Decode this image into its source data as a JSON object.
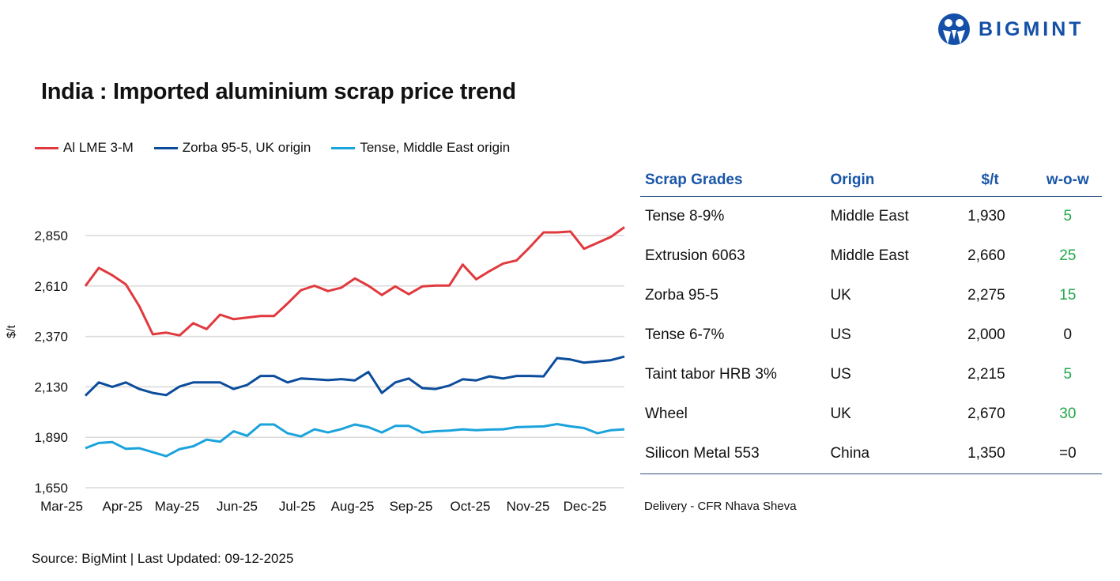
{
  "title": "India : Imported aluminium scrap price trend",
  "logo": {
    "text": "BIGMINT",
    "color": "#1450a8"
  },
  "source": "Source: BigMint | Last Updated: 09-12-2025",
  "chart_data": {
    "type": "line",
    "title": "India : Imported aluminium scrap price trend",
    "ylabel": "$/t",
    "xlabel": "",
    "ylim": [
      1650,
      2850
    ],
    "yticks": [
      "1,650",
      "1,890",
      "2,130",
      "2,370",
      "2,610",
      "2,850"
    ],
    "ytick_values": [
      1650,
      1890,
      2130,
      2370,
      2610,
      2850
    ],
    "xtick_labels": [
      "Mar-25",
      "Apr-25",
      "May-25",
      "Jun-25",
      "Jul-25",
      "Aug-25",
      "Sep-25",
      "Oct-25",
      "Nov-25",
      "Dec-25"
    ],
    "grid": true,
    "legend_position": "top-left",
    "series": [
      {
        "name": "Al LME 3-M",
        "color": "#e0393e",
        "values": [
          2610,
          2696,
          2661,
          2618,
          2514,
          2380,
          2388,
          2375,
          2433,
          2405,
          2474,
          2452,
          2460,
          2467,
          2467,
          2527,
          2590,
          2611,
          2586,
          2602,
          2646,
          2611,
          2567,
          2608,
          2571,
          2608,
          2612,
          2612,
          2712,
          2642,
          2681,
          2717,
          2732,
          2796,
          2865,
          2865,
          2869,
          2787,
          2815,
          2844,
          2890
        ]
      },
      {
        "name": "Zorba 95-5, UK origin",
        "color": "#0b4d9c",
        "values": [
          2088,
          2151,
          2130,
          2151,
          2120,
          2101,
          2091,
          2132,
          2151,
          2151,
          2151,
          2120,
          2139,
          2182,
          2182,
          2151,
          2170,
          2166,
          2162,
          2167,
          2161,
          2201,
          2101,
          2151,
          2170,
          2124,
          2120,
          2136,
          2166,
          2161,
          2180,
          2170,
          2182,
          2182,
          2180,
          2267,
          2260,
          2245,
          2251,
          2257,
          2274
        ]
      },
      {
        "name": "Tense, Middle East origin",
        "color": "#1aa3dc",
        "values": [
          1838,
          1863,
          1867,
          1835,
          1838,
          1819,
          1800,
          1834,
          1847,
          1879,
          1869,
          1919,
          1897,
          1951,
          1951,
          1909,
          1894,
          1928,
          1913,
          1929,
          1951,
          1938,
          1913,
          1944,
          1944,
          1913,
          1919,
          1922,
          1928,
          1924,
          1927,
          1928,
          1938,
          1940,
          1942,
          1953,
          1942,
          1934,
          1909,
          1924,
          1928
        ]
      }
    ]
  },
  "table": {
    "headers": [
      "Scrap Grades",
      "Origin",
      "$/t",
      "w-o-w"
    ],
    "rows": [
      {
        "grade": "Tense 8-9%",
        "origin": "Middle East",
        "price": "1,930",
        "wow": "5",
        "positive": true
      },
      {
        "grade": "Extrusion 6063",
        "origin": "Middle East",
        "price": "2,660",
        "wow": "25",
        "positive": true
      },
      {
        "grade": "Zorba 95-5",
        "origin": "UK",
        "price": "2,275",
        "wow": "15",
        "positive": true
      },
      {
        "grade": "Tense 6-7%",
        "origin": "US",
        "price": "2,000",
        "wow": "0",
        "positive": false
      },
      {
        "grade": "Taint tabor HRB 3%",
        "origin": "US",
        "price": "2,215",
        "wow": "5",
        "positive": true
      },
      {
        "grade": "Wheel",
        "origin": "UK",
        "price": "2,670",
        "wow": "30",
        "positive": true
      },
      {
        "grade": "Silicon Metal 553",
        "origin": "China",
        "price": "1,350",
        "wow": "=0",
        "positive": false
      }
    ],
    "note": "Delivery - CFR Nhava Sheva",
    "header_color": "#1a56a8",
    "positive_color": "#22a84a"
  }
}
